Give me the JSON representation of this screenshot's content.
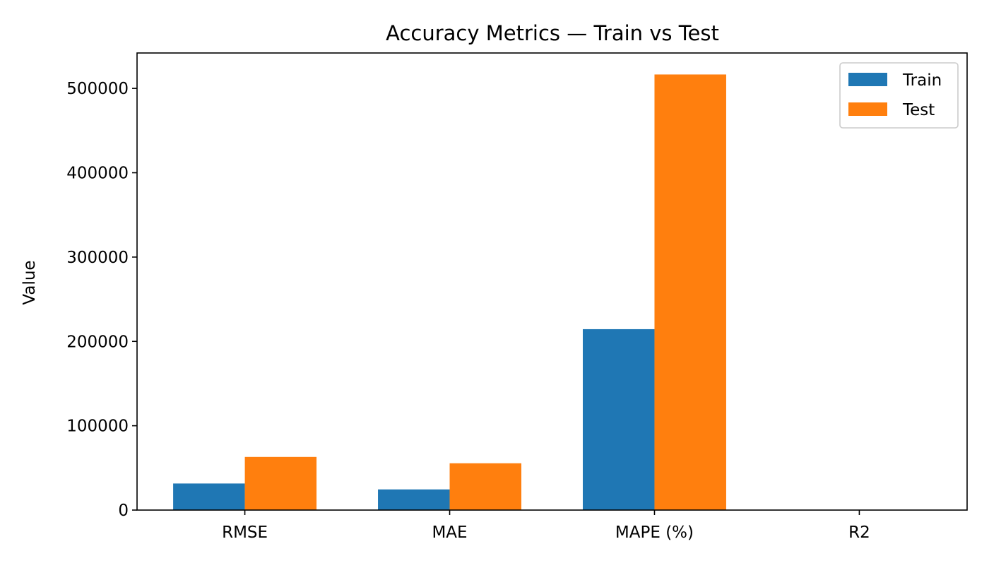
{
  "chart_data": {
    "type": "bar",
    "title": "Accuracy Metrics — Train vs Test",
    "xlabel": "",
    "ylabel": "Value",
    "categories": [
      "RMSE",
      "MAE",
      "MAPE (%)",
      "R2"
    ],
    "series": [
      {
        "name": "Train",
        "color": "#1f77b4",
        "values": [
          31500,
          24500,
          214500,
          0.9
        ]
      },
      {
        "name": "Test",
        "color": "#ff7f0e",
        "values": [
          63000,
          55500,
          516500,
          0.6
        ]
      }
    ],
    "ylim": [
      0,
      542000
    ],
    "yticks": [
      0,
      100000,
      200000,
      300000,
      400000,
      500000
    ],
    "ytick_labels": [
      "0",
      "100000",
      "200000",
      "300000",
      "400000",
      "500000"
    ],
    "grid": false,
    "legend_position": "top-right"
  }
}
